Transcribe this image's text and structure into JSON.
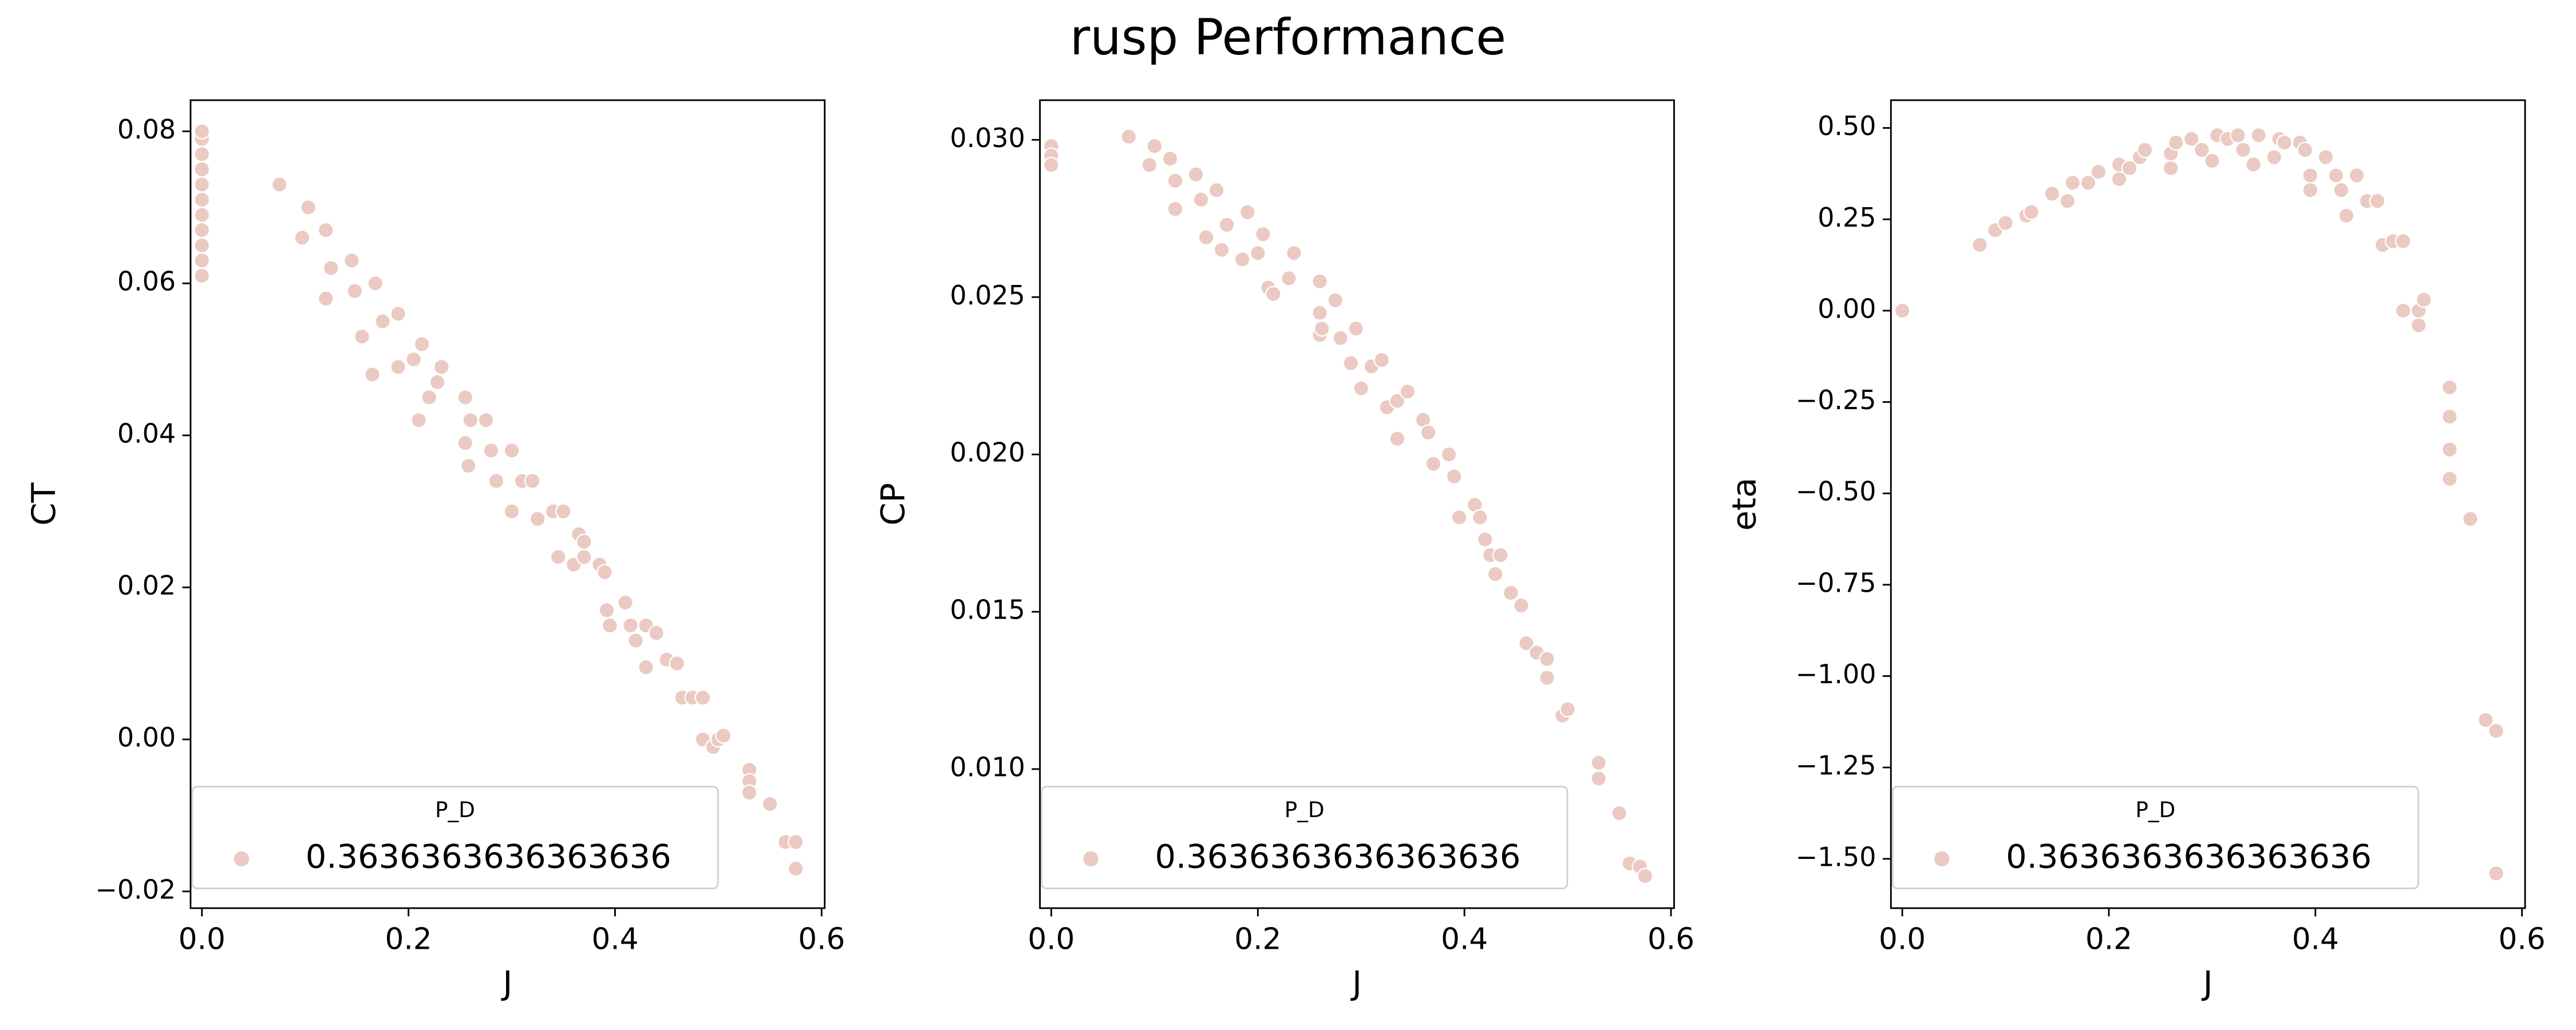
{
  "title": "rusp Performance",
  "chart_data": [
    {
      "type": "scatter",
      "xlabel": "J",
      "ylabel": "CT",
      "legend_title": "P_D",
      "legend": "lower left",
      "xlim": [
        -0.011,
        0.603
      ],
      "ylim": [
        -0.0222,
        0.0841
      ],
      "xticks": [
        {
          "value": 0,
          "label": "0.0"
        },
        0.2,
        0.4,
        0.6
      ],
      "yticks": [
        {
          "value": -0.02,
          "label": "−0.02"
        },
        {
          "value": 0,
          "label": "0.00"
        },
        0.02,
        0.04,
        0.06,
        0.08
      ],
      "series": [
        {
          "name": "0.3636363636363636",
          "color": "#eacac2",
          "x": [
            0,
            0,
            0,
            0,
            0,
            0,
            0,
            0,
            0,
            0,
            0,
            0.075,
            0.097,
            0.103,
            0.12,
            0.12,
            0.125,
            0.145,
            0.148,
            0.155,
            0.165,
            0.168,
            0.175,
            0.19,
            0.19,
            0.205,
            0.21,
            0.213,
            0.22,
            0.228,
            0.232,
            0.255,
            0.255,
            0.258,
            0.26,
            0.275,
            0.28,
            0.285,
            0.3,
            0.3,
            0.31,
            0.32,
            0.325,
            0.34,
            0.345,
            0.35,
            0.36,
            0.365,
            0.37,
            0.37,
            0.385,
            0.39,
            0.392,
            0.395,
            0.41,
            0.415,
            0.42,
            0.43,
            0.43,
            0.44,
            0.45,
            0.46,
            0.465,
            0.475,
            0.485,
            0.485,
            0.495,
            0.5,
            0.505,
            0.53,
            0.53,
            0.53,
            0.55,
            0.565,
            0.575,
            0.575
          ],
          "values": [
            0.061,
            0.063,
            0.065,
            0.067,
            0.069,
            0.071,
            0.073,
            0.075,
            0.077,
            0.079,
            0.08,
            0.073,
            0.066,
            0.07,
            0.058,
            0.067,
            0.062,
            0.063,
            0.059,
            0.053,
            0.048,
            0.06,
            0.055,
            0.049,
            0.056,
            0.05,
            0.042,
            0.052,
            0.045,
            0.047,
            0.049,
            0.045,
            0.039,
            0.036,
            0.042,
            0.042,
            0.038,
            0.034,
            0.038,
            0.03,
            0.034,
            0.034,
            0.029,
            0.03,
            0.024,
            0.03,
            0.023,
            0.027,
            0.026,
            0.024,
            0.023,
            0.022,
            0.017,
            0.015,
            0.018,
            0.015,
            0.013,
            0.0095,
            0.015,
            0.014,
            0.0105,
            0.01,
            0.0055,
            0.0055,
            0.0055,
            0,
            -0.001,
            0,
            0.0005,
            -0.004,
            -0.0055,
            -0.007,
            -0.0085,
            -0.0135,
            -0.0135,
            -0.017
          ]
        }
      ]
    },
    {
      "type": "scatter",
      "xlabel": "J",
      "ylabel": "CP",
      "legend_title": "P_D",
      "legend": "lower left",
      "xlim": [
        -0.011,
        0.603
      ],
      "ylim": [
        0.00558,
        0.03126
      ],
      "xticks": [
        {
          "value": 0,
          "label": "0.0"
        },
        0.2,
        0.4,
        0.6
      ],
      "yticks": [
        {
          "value": 0.01,
          "label": "0.010"
        },
        0.015,
        {
          "value": 0.02,
          "label": "0.020"
        },
        0.025,
        {
          "value": 0.03,
          "label": "0.030"
        }
      ],
      "series": [
        {
          "name": "0.3636363636363636",
          "color": "#eacac2",
          "x": [
            0,
            0,
            0,
            0.075,
            0.095,
            0.1,
            0.115,
            0.12,
            0.12,
            0.14,
            0.145,
            0.15,
            0.16,
            0.165,
            0.17,
            0.185,
            0.19,
            0.2,
            0.205,
            0.21,
            0.215,
            0.23,
            0.235,
            0.26,
            0.26,
            0.26,
            0.262,
            0.275,
            0.28,
            0.29,
            0.295,
            0.3,
            0.31,
            0.32,
            0.325,
            0.335,
            0.335,
            0.345,
            0.36,
            0.365,
            0.37,
            0.385,
            0.39,
            0.395,
            0.41,
            0.415,
            0.42,
            0.425,
            0.43,
            0.435,
            0.445,
            0.455,
            0.46,
            0.47,
            0.48,
            0.48,
            0.495,
            0.5,
            0.53,
            0.53,
            0.55,
            0.56,
            0.57,
            0.575
          ],
          "values": [
            0.0298,
            0.0295,
            0.0292,
            0.0301,
            0.0292,
            0.0298,
            0.0294,
            0.0278,
            0.0287,
            0.0289,
            0.0281,
            0.0269,
            0.0284,
            0.0265,
            0.0273,
            0.0262,
            0.0277,
            0.0264,
            0.027,
            0.0253,
            0.0251,
            0.0256,
            0.0264,
            0.0255,
            0.0245,
            0.0238,
            0.024,
            0.0249,
            0.0237,
            0.0229,
            0.024,
            0.0221,
            0.0228,
            0.023,
            0.0215,
            0.0205,
            0.0217,
            0.022,
            0.0211,
            0.0207,
            0.0197,
            0.02,
            0.0193,
            0.018,
            0.0184,
            0.018,
            0.0173,
            0.0168,
            0.0162,
            0.0168,
            0.0156,
            0.0152,
            0.014,
            0.0137,
            0.0135,
            0.0129,
            0.0117,
            0.0119,
            0.0102,
            0.0097,
            0.0086,
            0.007,
            0.0069,
            0.0066
          ]
        }
      ]
    },
    {
      "type": "scatter",
      "xlabel": "J",
      "ylabel": "eta",
      "legend_title": "P_D",
      "legend": "lower left",
      "xlim": [
        -0.011,
        0.603
      ],
      "ylim": [
        -1.635,
        0.576
      ],
      "xticks": [
        {
          "value": 0,
          "label": "0.0"
        },
        0.2,
        0.4,
        0.6
      ],
      "yticks": [
        {
          "value": -1.5,
          "label": "−1.50"
        },
        {
          "value": -1.25,
          "label": "−1.25"
        },
        {
          "value": -1,
          "label": "−1.00"
        },
        {
          "value": -0.75,
          "label": "−0.75"
        },
        {
          "value": -0.5,
          "label": "−0.50"
        },
        {
          "value": -0.25,
          "label": "−0.25"
        },
        {
          "value": 0,
          "label": "0.00"
        },
        0.25,
        {
          "value": 0.5,
          "label": "0.50"
        }
      ],
      "series": [
        {
          "name": "0.3636363636363636",
          "color": "#eacac2",
          "x": [
            0,
            0.075,
            0.09,
            0.1,
            0.12,
            0.125,
            0.145,
            0.16,
            0.165,
            0.18,
            0.19,
            0.21,
            0.21,
            0.22,
            0.23,
            0.235,
            0.26,
            0.26,
            0.265,
            0.28,
            0.29,
            0.3,
            0.305,
            0.315,
            0.325,
            0.33,
            0.34,
            0.345,
            0.36,
            0.365,
            0.37,
            0.385,
            0.39,
            0.395,
            0.395,
            0.41,
            0.42,
            0.425,
            0.43,
            0.44,
            0.45,
            0.46,
            0.465,
            0.475,
            0.485,
            0.485,
            0.5,
            0.5,
            0.505,
            0.53,
            0.53,
            0.53,
            0.53,
            0.55,
            0.565,
            0.575,
            0.575
          ],
          "values": [
            0,
            0.18,
            0.22,
            0.24,
            0.26,
            0.27,
            0.32,
            0.3,
            0.35,
            0.35,
            0.38,
            0.36,
            0.4,
            0.39,
            0.42,
            0.44,
            0.39,
            0.43,
            0.46,
            0.47,
            0.44,
            0.41,
            0.48,
            0.47,
            0.48,
            0.44,
            0.4,
            0.48,
            0.42,
            0.47,
            0.46,
            0.46,
            0.44,
            0.37,
            0.33,
            0.42,
            0.37,
            0.33,
            0.26,
            0.37,
            0.3,
            0.3,
            0.18,
            0.19,
            0.19,
            0,
            -0.04,
            0,
            0.03,
            -0.21,
            -0.29,
            -0.38,
            -0.46,
            -0.57,
            -1.12,
            -1.15,
            -1.54
          ]
        }
      ]
    }
  ]
}
